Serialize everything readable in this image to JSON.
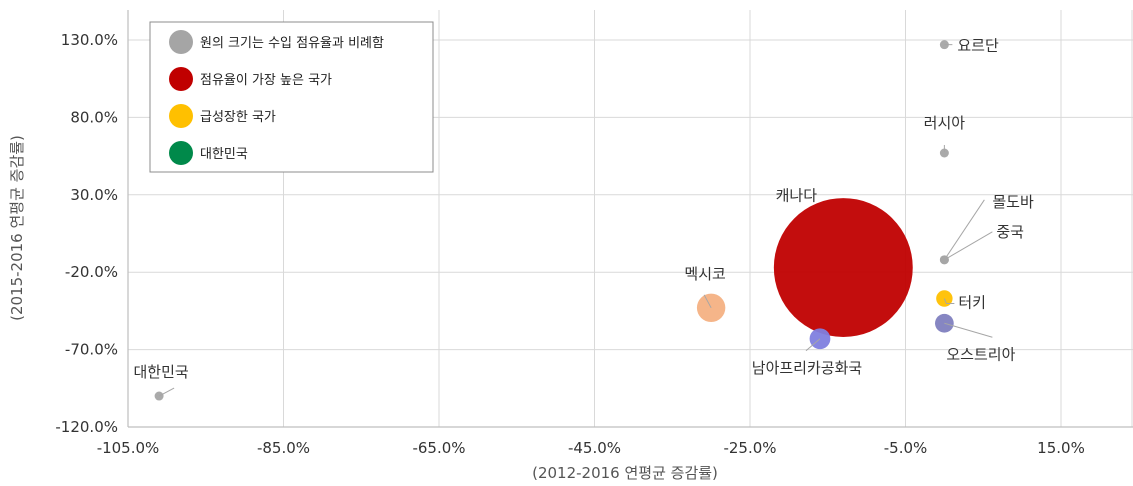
{
  "chart_data": {
    "type": "scatter",
    "xlabel": "(2012-2016 연평균 증감률)",
    "ylabel": "(2015-2016 연평균 증감률)",
    "xlim": [
      -105,
      25
    ],
    "ylim": [
      -120,
      145
    ],
    "x_ticks": [
      -105,
      -85,
      -65,
      -45,
      -25,
      -5,
      15
    ],
    "x_tick_labels": [
      "-105.0%",
      "-85.0%",
      "-65.0%",
      "-45.0%",
      "-25.0%",
      "-5.0%",
      "15.0%"
    ],
    "y_ticks": [
      130,
      80,
      30,
      -20,
      -70,
      -120
    ],
    "y_tick_labels": [
      "130.0%",
      "80.0%",
      "30.0%",
      "-20.0%",
      "-70.0%",
      "-120.0%"
    ],
    "grid": true,
    "legend": {
      "placement": "top-left",
      "entries": [
        {
          "label": "원의 크기는 수입 점유율과 비례함",
          "color": "#a5a5a5"
        },
        {
          "label": "점유율이 가장 높은 국가",
          "color": "#c00000"
        },
        {
          "label": "급성장한 국가",
          "color": "#ffc000"
        },
        {
          "label": "대한민국",
          "color": "#00894a"
        }
      ]
    },
    "points": [
      {
        "label": "캐나다",
        "x": -13,
        "y": -17,
        "size": 58,
        "color": "#c00000"
      },
      {
        "label": "요르단",
        "x": 0,
        "y": 127,
        "size": 0.3,
        "color": "#a5a5a5"
      },
      {
        "label": "러시아",
        "x": 0,
        "y": 57,
        "size": 0.3,
        "color": "#a5a5a5"
      },
      {
        "label": "몰도바",
        "x": 0,
        "y": -12,
        "size": 0.3,
        "color": "#a5a5a5"
      },
      {
        "label": "중국",
        "x": 0,
        "y": -12,
        "size": 0.3,
        "color": "#a5a5a5"
      },
      {
        "label": "터키",
        "x": 0,
        "y": -37,
        "size": 1,
        "color": "#ffc000"
      },
      {
        "label": "오스트리아",
        "x": 0,
        "y": -53,
        "size": 1.3,
        "color": "#7f7fbf"
      },
      {
        "label": "멕시코",
        "x": -30,
        "y": -43,
        "size": 3,
        "color": "#f4b183"
      },
      {
        "label": "남아프리카공화국",
        "x": -16,
        "y": -63,
        "size": 1.6,
        "color": "#7f7fdf"
      },
      {
        "label": "대한민국",
        "x": -101,
        "y": -100,
        "size": 0.3,
        "color": "#a5a5a5"
      }
    ]
  }
}
